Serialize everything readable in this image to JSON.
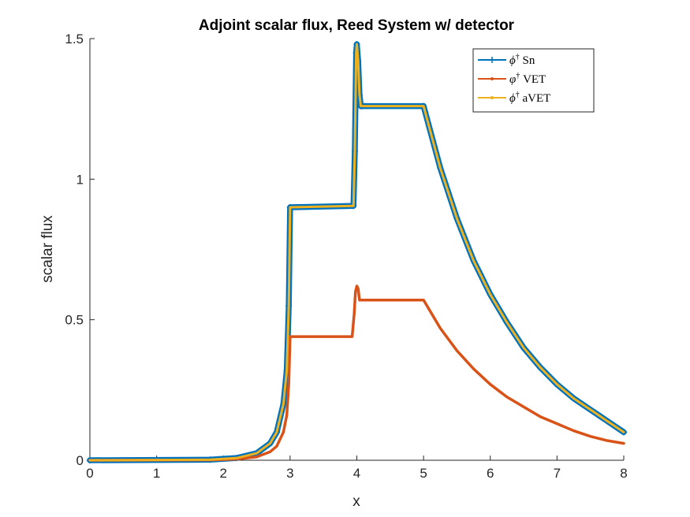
{
  "chart_data": {
    "type": "line",
    "title": "Adjoint scalar flux, Reed System w/ detector",
    "xlabel": "x",
    "ylabel": "scalar flux",
    "xlim": [
      0,
      8
    ],
    "ylim": [
      0,
      1.5
    ],
    "xticks": [
      0,
      1,
      2,
      3,
      4,
      5,
      6,
      7,
      8
    ],
    "xtick_labels": [
      "0",
      "1",
      "2",
      "3",
      "4",
      "5",
      "6",
      "7",
      "8"
    ],
    "yticks": [
      0,
      0.5,
      1,
      1.5
    ],
    "ytick_labels": [
      "0",
      "0.5",
      "1",
      "1.5"
    ],
    "grid": false,
    "legend_position": "top-right",
    "series": [
      {
        "name": "ϕ† Sn",
        "legend_base": "ϕ",
        "legend_sup": "†",
        "legend_suffix": " Sn",
        "color": "#0072BD",
        "marker": "plus",
        "x": [
          0,
          1.8,
          2.2,
          2.5,
          2.7,
          2.8,
          2.9,
          2.95,
          2.98,
          3.0,
          3.95,
          3.97,
          3.99,
          4.0,
          4.02,
          4.04,
          4.06,
          4.08,
          5.0,
          5.25,
          5.5,
          5.75,
          6.0,
          6.25,
          6.5,
          6.75,
          7.0,
          7.25,
          7.5,
          7.75,
          8.0
        ],
        "y": [
          0.0,
          0.002,
          0.008,
          0.025,
          0.06,
          0.1,
          0.2,
          0.32,
          0.55,
          0.9,
          0.905,
          1.1,
          1.45,
          1.48,
          1.42,
          1.3,
          1.26,
          1.26,
          1.26,
          1.04,
          0.86,
          0.71,
          0.59,
          0.49,
          0.4,
          0.33,
          0.27,
          0.22,
          0.18,
          0.14,
          0.1
        ]
      },
      {
        "name": "φ† VET",
        "legend_base": "φ",
        "legend_sup": "†",
        "legend_suffix": " VET",
        "color": "#D95319",
        "marker": "dot",
        "x": [
          0,
          1.8,
          2.2,
          2.5,
          2.7,
          2.8,
          2.9,
          2.95,
          2.98,
          3.0,
          3.93,
          3.96,
          3.98,
          4.0,
          4.02,
          4.04,
          4.06,
          4.08,
          5.0,
          5.25,
          5.5,
          5.75,
          6.0,
          6.25,
          6.5,
          6.75,
          7.0,
          7.25,
          7.5,
          7.75,
          8.0
        ],
        "y": [
          0.0,
          0.001,
          0.004,
          0.012,
          0.03,
          0.05,
          0.1,
          0.16,
          0.27,
          0.44,
          0.44,
          0.52,
          0.6,
          0.62,
          0.61,
          0.57,
          0.57,
          0.57,
          0.57,
          0.47,
          0.39,
          0.325,
          0.27,
          0.225,
          0.19,
          0.155,
          0.13,
          0.105,
          0.085,
          0.07,
          0.06
        ]
      },
      {
        "name": "ϕ† aVET",
        "legend_base": "ϕ",
        "legend_sup": "†",
        "legend_suffix": " aVET",
        "color": "#EDB120",
        "marker": "dot",
        "x": [
          0,
          1.8,
          2.2,
          2.5,
          2.7,
          2.8,
          2.9,
          2.95,
          2.98,
          3.0,
          3.95,
          3.97,
          3.99,
          4.0,
          4.02,
          4.04,
          4.06,
          4.08,
          5.0,
          5.25,
          5.5,
          5.75,
          6.0,
          6.25,
          6.5,
          6.75,
          7.0,
          7.25,
          7.5,
          7.75,
          8.0
        ],
        "y": [
          0.0,
          0.002,
          0.008,
          0.025,
          0.06,
          0.1,
          0.2,
          0.32,
          0.55,
          0.9,
          0.905,
          1.1,
          1.45,
          1.48,
          1.42,
          1.3,
          1.26,
          1.26,
          1.26,
          1.04,
          0.86,
          0.71,
          0.59,
          0.49,
          0.4,
          0.33,
          0.27,
          0.22,
          0.18,
          0.14,
          0.1
        ]
      }
    ]
  }
}
